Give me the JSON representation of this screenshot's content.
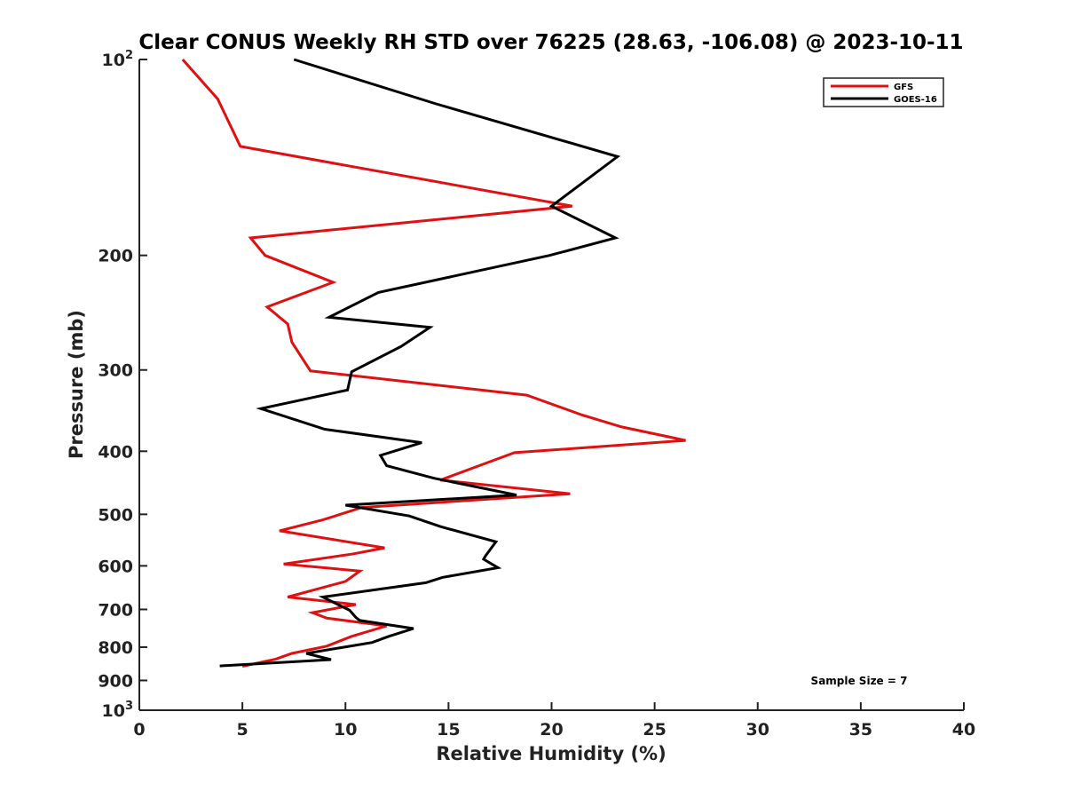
{
  "chart_data": {
    "type": "line",
    "title": "Clear CONUS Weekly RH STD over 76225 (28.63, -106.08) @ 2023-10-11",
    "xlabel": "Relative Humidity (%)",
    "ylabel": "Pressure (mb)",
    "xlim": [
      0,
      40
    ],
    "ylim": [
      1000,
      100
    ],
    "y_scale": "log",
    "y_reversed": true,
    "grid": false,
    "x_ticks": [
      "0",
      "5",
      "10",
      "15",
      "20",
      "25",
      "30",
      "35",
      "40"
    ],
    "y_ticks": [
      {
        "value": 100,
        "base": "10",
        "exp": "2"
      },
      {
        "value": 200,
        "label": "200"
      },
      {
        "value": 300,
        "label": "300"
      },
      {
        "value": 400,
        "label": "400"
      },
      {
        "value": 500,
        "label": "500"
      },
      {
        "value": 600,
        "label": "600"
      },
      {
        "value": 700,
        "label": "700"
      },
      {
        "value": 800,
        "label": "800"
      },
      {
        "value": 900,
        "label": "900"
      },
      {
        "value": 1000,
        "base": "10",
        "exp": "3"
      }
    ],
    "legend": {
      "position": "top-right"
    },
    "annotation": "Sample Size = 7",
    "series": [
      {
        "name": "GFS",
        "color": "#e01010",
        "points": [
          [
            2.1,
            100
          ],
          [
            3.8,
            115
          ],
          [
            4.9,
            136
          ],
          [
            21.0,
            168
          ],
          [
            5.4,
            188
          ],
          [
            6.1,
            200
          ],
          [
            9.4,
            220
          ],
          [
            6.2,
            240
          ],
          [
            7.2,
            255
          ],
          [
            7.4,
            272
          ],
          [
            8.3,
            301
          ],
          [
            18.8,
            328
          ],
          [
            21.5,
            352
          ],
          [
            23.4,
            367
          ],
          [
            26.5,
            385
          ],
          [
            18.2,
            402
          ],
          [
            16.3,
            423
          ],
          [
            14.6,
            443
          ],
          [
            20.9,
            465
          ],
          [
            10.8,
            488
          ],
          [
            8.9,
            510
          ],
          [
            6.8,
            530
          ],
          [
            11.9,
            563
          ],
          [
            10.4,
            575
          ],
          [
            7.0,
            596
          ],
          [
            10.7,
            611
          ],
          [
            10.0,
            634
          ],
          [
            7.2,
            670
          ],
          [
            10.5,
            688
          ],
          [
            8.4,
            708
          ],
          [
            9.1,
            722
          ],
          [
            12.0,
            742
          ],
          [
            10.3,
            770
          ],
          [
            9.1,
            797
          ],
          [
            7.4,
            818
          ],
          [
            6.6,
            835
          ],
          [
            5.0,
            856
          ]
        ]
      },
      {
        "name": "GOES-16",
        "color": "#000000",
        "points": [
          [
            7.5,
            100
          ],
          [
            14.4,
            117
          ],
          [
            23.2,
            141
          ],
          [
            20.0,
            168
          ],
          [
            23.1,
            188
          ],
          [
            19.9,
            200
          ],
          [
            11.6,
            228
          ],
          [
            9.2,
            249
          ],
          [
            14.1,
            258
          ],
          [
            12.7,
            276
          ],
          [
            10.3,
            302
          ],
          [
            10.1,
            322
          ],
          [
            5.9,
            344
          ],
          [
            9.0,
            370
          ],
          [
            13.7,
            388
          ],
          [
            11.7,
            406
          ],
          [
            12.0,
            421
          ],
          [
            14.3,
            440
          ],
          [
            18.3,
            467
          ],
          [
            10.0,
            484
          ],
          [
            13.1,
            503
          ],
          [
            14.6,
            522
          ],
          [
            17.3,
            551
          ],
          [
            16.8,
            579
          ],
          [
            16.7,
            586
          ],
          [
            17.4,
            604
          ],
          [
            14.7,
            625
          ],
          [
            13.9,
            637
          ],
          [
            8.9,
            670
          ],
          [
            10.2,
            702
          ],
          [
            10.5,
            720
          ],
          [
            10.7,
            728
          ],
          [
            13.3,
            749
          ],
          [
            12.1,
            770
          ],
          [
            11.3,
            787
          ],
          [
            8.1,
            818
          ],
          [
            9.3,
            836
          ],
          [
            3.9,
            855
          ]
        ]
      }
    ]
  }
}
